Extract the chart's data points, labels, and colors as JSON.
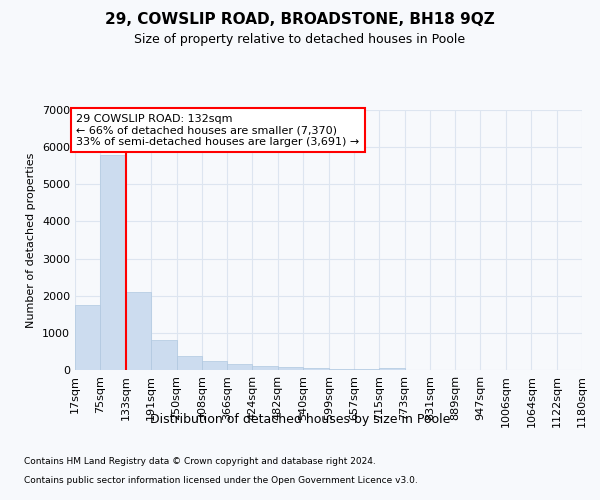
{
  "title1": "29, COWSLIP ROAD, BROADSTONE, BH18 9QZ",
  "title2": "Size of property relative to detached houses in Poole",
  "xlabel": "Distribution of detached houses by size in Poole",
  "ylabel": "Number of detached properties",
  "footnote1": "Contains HM Land Registry data © Crown copyright and database right 2024.",
  "footnote2": "Contains public sector information licensed under the Open Government Licence v3.0.",
  "annotation_line1": "29 COWSLIP ROAD: 132sqm",
  "annotation_line2": "← 66% of detached houses are smaller (7,370)",
  "annotation_line3": "33% of semi-detached houses are larger (3,691) →",
  "bar_color": "#ccdcef",
  "bar_edge_color": "#b0c8e0",
  "red_line_x": 133,
  "ylim": [
    0,
    7000
  ],
  "yticks": [
    0,
    1000,
    2000,
    3000,
    4000,
    5000,
    6000,
    7000
  ],
  "bin_edges": [
    17,
    75,
    133,
    191,
    250,
    308,
    366,
    424,
    482,
    540,
    599,
    657,
    715,
    773,
    831,
    889,
    947,
    1006,
    1064,
    1122,
    1180
  ],
  "bin_labels": [
    "17sqm",
    "75sqm",
    "133sqm",
    "191sqm",
    "250sqm",
    "308sqm",
    "366sqm",
    "424sqm",
    "482sqm",
    "540sqm",
    "599sqm",
    "657sqm",
    "715sqm",
    "773sqm",
    "831sqm",
    "889sqm",
    "947sqm",
    "1006sqm",
    "1064sqm",
    "1122sqm",
    "1180sqm"
  ],
  "bar_heights": [
    1760,
    5780,
    2090,
    800,
    380,
    230,
    150,
    100,
    70,
    45,
    30,
    20,
    55,
    5,
    4,
    3,
    2,
    2,
    1,
    1
  ],
  "background_color": "#f7f9fc",
  "grid_color": "#dde5f0",
  "title1_fontsize": 11,
  "title2_fontsize": 9,
  "xlabel_fontsize": 9,
  "ylabel_fontsize": 8
}
